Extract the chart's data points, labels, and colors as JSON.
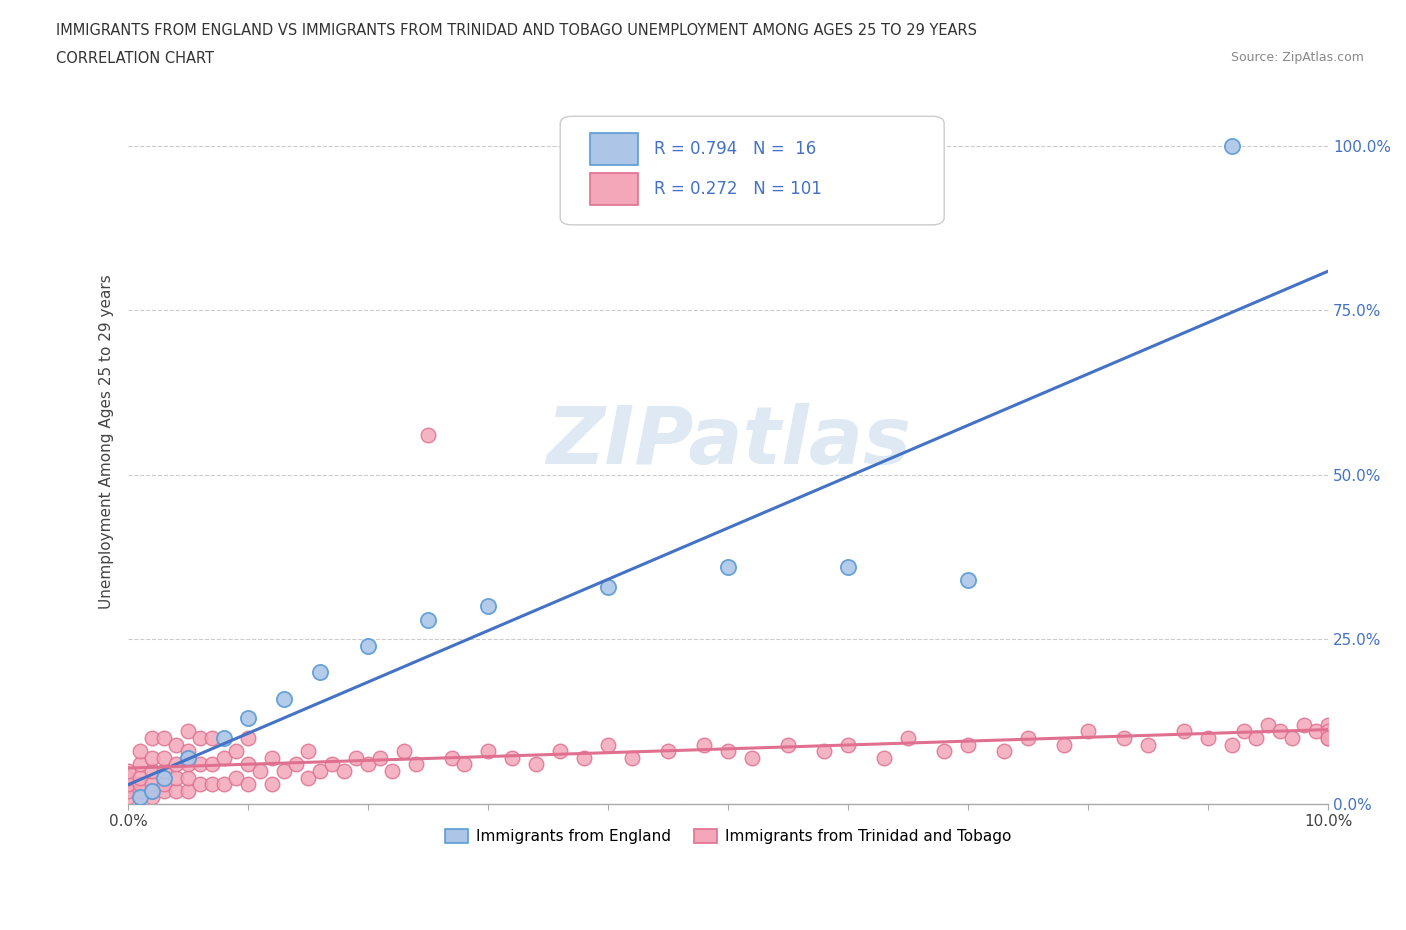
{
  "title_line1": "IMMIGRANTS FROM ENGLAND VS IMMIGRANTS FROM TRINIDAD AND TOBAGO UNEMPLOYMENT AMONG AGES 25 TO 29 YEARS",
  "title_line2": "CORRELATION CHART",
  "source_text": "Source: ZipAtlas.com",
  "ylabel_text": "Unemployment Among Ages 25 to 29 years",
  "xlim": [
    0.0,
    0.1
  ],
  "ylim": [
    0.0,
    1.1
  ],
  "england_color": "#adc6e8",
  "england_edge_color": "#5b9bd5",
  "tt_color": "#f4a7b9",
  "tt_edge_color": "#e07090",
  "england_line_color": "#4472c4",
  "tt_line_color": "#e07090",
  "england_R": 0.794,
  "england_N": 16,
  "tt_R": 0.272,
  "tt_N": 101,
  "watermark_text": "ZIPatlas",
  "legend_label_england": "Immigrants from England",
  "legend_label_tt": "Immigrants from Trinidad and Tobago",
  "background_color": "#ffffff",
  "grid_color": "#cccccc",
  "england_x": [
    0.001,
    0.002,
    0.003,
    0.005,
    0.008,
    0.01,
    0.013,
    0.016,
    0.02,
    0.025,
    0.03,
    0.04,
    0.05,
    0.06,
    0.07,
    0.092
  ],
  "england_y": [
    0.01,
    0.02,
    0.04,
    0.07,
    0.1,
    0.13,
    0.16,
    0.2,
    0.24,
    0.28,
    0.3,
    0.33,
    0.36,
    0.36,
    0.34,
    1.0
  ],
  "tt_x": [
    0.0,
    0.0,
    0.0,
    0.0,
    0.0,
    0.001,
    0.001,
    0.001,
    0.001,
    0.001,
    0.001,
    0.002,
    0.002,
    0.002,
    0.002,
    0.002,
    0.002,
    0.003,
    0.003,
    0.003,
    0.003,
    0.003,
    0.004,
    0.004,
    0.004,
    0.004,
    0.005,
    0.005,
    0.005,
    0.005,
    0.005,
    0.006,
    0.006,
    0.006,
    0.007,
    0.007,
    0.007,
    0.008,
    0.008,
    0.009,
    0.009,
    0.01,
    0.01,
    0.01,
    0.011,
    0.012,
    0.012,
    0.013,
    0.014,
    0.015,
    0.015,
    0.016,
    0.017,
    0.018,
    0.019,
    0.02,
    0.021,
    0.022,
    0.023,
    0.024,
    0.025,
    0.027,
    0.028,
    0.03,
    0.032,
    0.034,
    0.036,
    0.038,
    0.04,
    0.042,
    0.045,
    0.048,
    0.05,
    0.052,
    0.055,
    0.058,
    0.06,
    0.063,
    0.065,
    0.068,
    0.07,
    0.073,
    0.075,
    0.078,
    0.08,
    0.083,
    0.085,
    0.088,
    0.09,
    0.092,
    0.093,
    0.094,
    0.095,
    0.096,
    0.097,
    0.098,
    0.099,
    0.1,
    0.1,
    0.1,
    0.1
  ],
  "tt_y": [
    0.01,
    0.02,
    0.03,
    0.04,
    0.05,
    0.01,
    0.02,
    0.03,
    0.04,
    0.06,
    0.08,
    0.01,
    0.02,
    0.03,
    0.05,
    0.07,
    0.1,
    0.02,
    0.03,
    0.05,
    0.07,
    0.1,
    0.02,
    0.04,
    0.06,
    0.09,
    0.02,
    0.04,
    0.06,
    0.08,
    0.11,
    0.03,
    0.06,
    0.1,
    0.03,
    0.06,
    0.1,
    0.03,
    0.07,
    0.04,
    0.08,
    0.03,
    0.06,
    0.1,
    0.05,
    0.03,
    0.07,
    0.05,
    0.06,
    0.04,
    0.08,
    0.05,
    0.06,
    0.05,
    0.07,
    0.06,
    0.07,
    0.05,
    0.08,
    0.06,
    0.56,
    0.07,
    0.06,
    0.08,
    0.07,
    0.06,
    0.08,
    0.07,
    0.09,
    0.07,
    0.08,
    0.09,
    0.08,
    0.07,
    0.09,
    0.08,
    0.09,
    0.07,
    0.1,
    0.08,
    0.09,
    0.08,
    0.1,
    0.09,
    0.11,
    0.1,
    0.09,
    0.11,
    0.1,
    0.09,
    0.11,
    0.1,
    0.12,
    0.11,
    0.1,
    0.12,
    0.11,
    0.1,
    0.12,
    0.11,
    0.1
  ]
}
